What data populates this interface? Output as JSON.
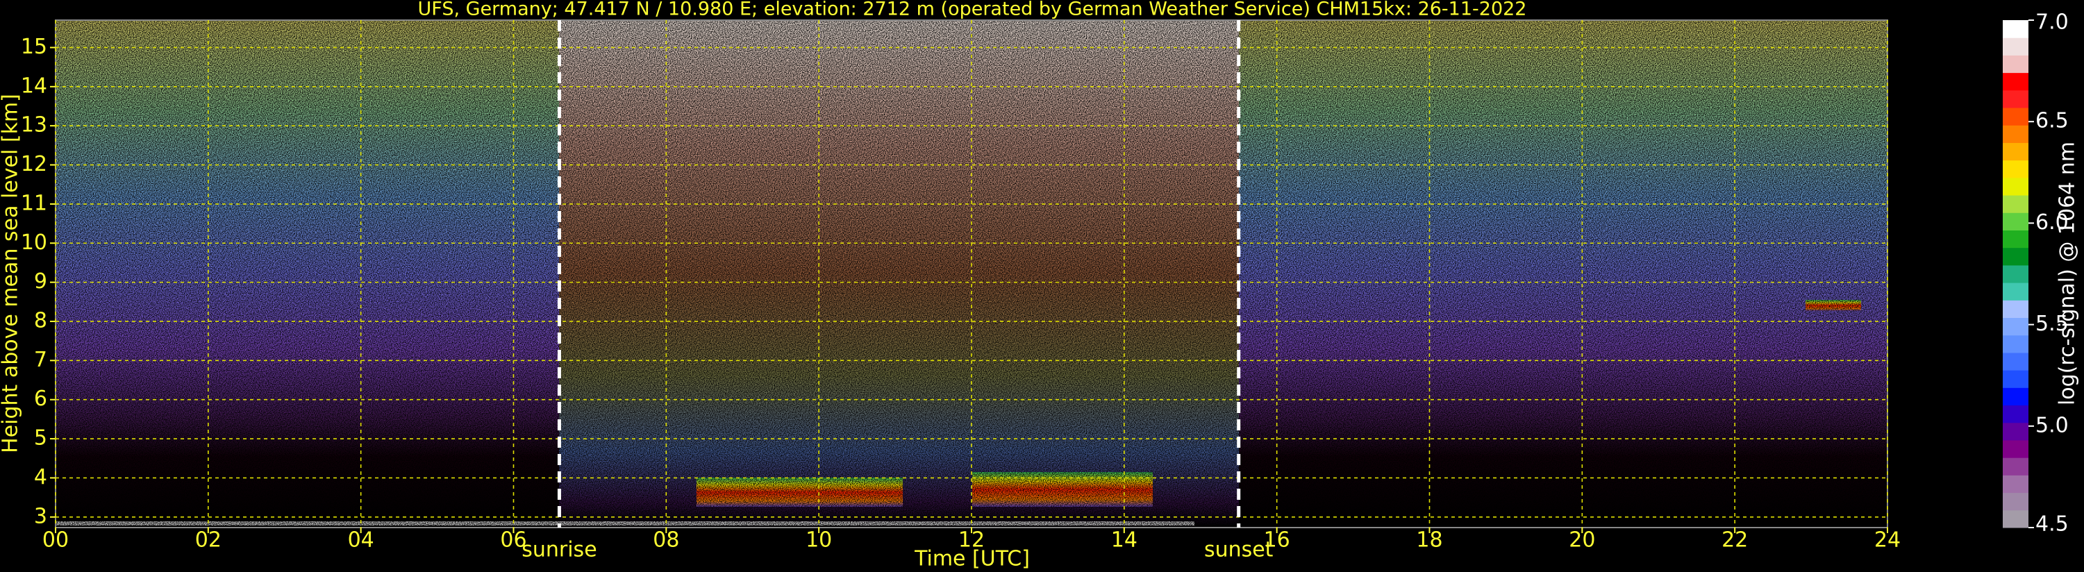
{
  "chart_data": {
    "type": "heatmap",
    "title": "UFS, Germany; 47.417 N / 10.980 E; elevation: 2712 m  (operated by German Weather Service)    CHM15kx: 26-11-2022",
    "x_label": "Time [UTC]",
    "y_label": "Height above mean sea level [km]",
    "xlim": [
      0,
      24
    ],
    "xticks": [
      {
        "value": 0,
        "label": "00"
      },
      {
        "value": 2,
        "label": "02"
      },
      {
        "value": 4,
        "label": "04"
      },
      {
        "value": 6,
        "label": "06"
      },
      {
        "value": 8,
        "label": "08"
      },
      10,
      12,
      14,
      16,
      18,
      20,
      22,
      24
    ],
    "ylim": [
      2.73,
      15.7
    ],
    "yticks": [
      3,
      4,
      5,
      6,
      7,
      8,
      9,
      10,
      11,
      12,
      13,
      14,
      15
    ],
    "grid": true,
    "sunrise": {
      "x": 6.6,
      "label": "sunrise"
    },
    "sunset": {
      "x": 15.5,
      "label": "sunset"
    },
    "colorbar": {
      "label": "log(rc-signal) @ 1064 nm",
      "lim": [
        4.5,
        7.0
      ],
      "ticks": [
        {
          "value": 4.5,
          "label": "4.5"
        },
        {
          "value": 5.0,
          "label": "5.0"
        },
        {
          "value": 5.5,
          "label": "5.5"
        },
        {
          "value": 6.0,
          "label": "6.0"
        },
        {
          "value": 6.5,
          "label": "6.5"
        },
        {
          "value": 7.0,
          "label": "7.0"
        }
      ],
      "colors": [
        "#a49ca8",
        "#a088a8",
        "#a070a8",
        "#903c98",
        "#800088",
        "#6000a0",
        "#3000c8",
        "#0010ff",
        "#2050ff",
        "#4070ff",
        "#6090ff",
        "#80a8ff",
        "#a8c0ff",
        "#40c8b0",
        "#20b080",
        "#009020",
        "#20b020",
        "#60d040",
        "#a8e040",
        "#e8f000",
        "#ffe000",
        "#ffb000",
        "#ff8000",
        "#ff5000",
        "#ff2020",
        "#ff0000",
        "#f0c0c0",
        "#f0e0e0",
        "#ffffff"
      ]
    }
  }
}
